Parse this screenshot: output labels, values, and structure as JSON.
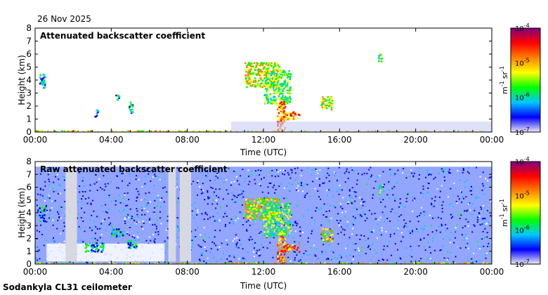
{
  "header": {
    "date": "26 Nov 2025"
  },
  "footer": {
    "site": "Sodankyla CL31 ceilometer"
  },
  "colors": {
    "frame": "#000000",
    "background": "#ffffff",
    "colorbar_stops": [
      "#ece8f4",
      "#0000ff",
      "#00c8ff",
      "#00ff00",
      "#ffff00",
      "#ff8000",
      "#ff0000",
      "#800080"
    ]
  },
  "chart_data": [
    {
      "type": "heatmap",
      "title": "Attenuated backscatter coefficient",
      "xlabel": "Time (UTC)",
      "ylabel": "Height (km)",
      "x_ticks": [
        "00:00",
        "04:00",
        "08:00",
        "12:00",
        "16:00",
        "20:00",
        "00:00"
      ],
      "x_range_hours": [
        0,
        24
      ],
      "y_ticks": [
        "0",
        "1",
        "2",
        "3",
        "4",
        "5",
        "6",
        "7",
        "8"
      ],
      "ylim": [
        0,
        8
      ],
      "colorbar": {
        "scale": "log",
        "range": [
          1e-07,
          0.0001
        ],
        "ticks": [
          "10",
          "10",
          "10",
          "10"
        ],
        "tick_exponents": [
          "-7",
          "-6",
          "-5",
          "-4"
        ],
        "unit_base": [
          "m",
          "sr"
        ],
        "unit_exponents": [
          "-1",
          "-1"
        ]
      },
      "features": [
        {
          "t0": 0.0,
          "t1": 24.0,
          "h0": 0.0,
          "h1": 0.15,
          "level": 5
        },
        {
          "t0": 0.2,
          "t1": 0.5,
          "h0": 3.4,
          "h1": 4.5,
          "level": 3
        },
        {
          "t0": 3.1,
          "t1": 3.3,
          "h0": 1.2,
          "h1": 1.9,
          "level": 2
        },
        {
          "t0": 4.2,
          "t1": 4.4,
          "h0": 2.5,
          "h1": 3.0,
          "level": 3
        },
        {
          "t0": 4.9,
          "t1": 5.1,
          "h0": 1.5,
          "h1": 2.4,
          "level": 3
        },
        {
          "t0": 11.0,
          "t1": 12.8,
          "h0": 3.5,
          "h1": 5.4,
          "level": 5
        },
        {
          "t0": 12.0,
          "t1": 13.4,
          "h0": 2.2,
          "h1": 4.8,
          "level": 4
        },
        {
          "t0": 12.7,
          "t1": 13.1,
          "h0": 0.0,
          "h1": 2.5,
          "level": 6
        },
        {
          "t0": 13.0,
          "t1": 13.9,
          "h0": 1.0,
          "h1": 1.6,
          "level": 6
        },
        {
          "t0": 15.0,
          "t1": 15.6,
          "h0": 1.8,
          "h1": 2.8,
          "level": 5
        },
        {
          "t0": 18.0,
          "t1": 18.2,
          "h0": 5.5,
          "h1": 6.2,
          "level": 4
        },
        {
          "t0": 10.3,
          "t1": 24.0,
          "h0": 0.0,
          "h1": 0.8,
          "level": 1
        }
      ]
    },
    {
      "type": "heatmap",
      "title": "Raw attenuated backscatter coefficient",
      "xlabel": "Time (UTC)",
      "ylabel": "Height (km)",
      "x_ticks": [
        "00:00",
        "04:00",
        "08:00",
        "12:00",
        "16:00",
        "20:00",
        "00:00"
      ],
      "x_range_hours": [
        0,
        24
      ],
      "y_ticks": [
        "0",
        "1",
        "2",
        "3",
        "4",
        "5",
        "6",
        "7",
        "8"
      ],
      "ylim": [
        0,
        8
      ],
      "colorbar": {
        "scale": "log",
        "range": [
          1e-07,
          0.0001
        ],
        "ticks": [
          "10",
          "10",
          "10",
          "10"
        ],
        "tick_exponents": [
          "-7",
          "-6",
          "-5",
          "-4"
        ],
        "unit_base": [
          "m",
          "sr"
        ],
        "unit_exponents": [
          "-1",
          "-1"
        ]
      },
      "noise_ceiling_km": 7.6,
      "gap_columns_hours": [
        [
          1.6,
          2.2
        ],
        [
          7.0,
          7.4
        ],
        [
          7.6,
          8.2
        ]
      ],
      "features": [
        {
          "t0": 0.2,
          "t1": 0.5,
          "h0": 3.4,
          "h1": 4.5,
          "level": 3
        },
        {
          "t0": 2.6,
          "t1": 3.6,
          "h0": 1.0,
          "h1": 1.7,
          "level": 3
        },
        {
          "t0": 4.0,
          "t1": 4.6,
          "h0": 2.2,
          "h1": 2.8,
          "level": 3
        },
        {
          "t0": 4.8,
          "t1": 5.3,
          "h0": 1.3,
          "h1": 2.0,
          "level": 3
        },
        {
          "t0": 11.0,
          "t1": 12.8,
          "h0": 3.5,
          "h1": 5.2,
          "level": 5
        },
        {
          "t0": 12.0,
          "t1": 13.4,
          "h0": 2.2,
          "h1": 4.8,
          "level": 4
        },
        {
          "t0": 12.7,
          "t1": 13.1,
          "h0": 0.0,
          "h1": 2.5,
          "level": 6
        },
        {
          "t0": 13.0,
          "t1": 13.9,
          "h0": 1.0,
          "h1": 1.6,
          "level": 6
        },
        {
          "t0": 15.0,
          "t1": 15.6,
          "h0": 1.8,
          "h1": 2.8,
          "level": 5
        },
        {
          "t0": 18.0,
          "t1": 18.2,
          "h0": 5.5,
          "h1": 6.2,
          "level": 4
        },
        {
          "t0": 0.0,
          "t1": 24.0,
          "h0": 0.0,
          "h1": 0.15,
          "level": 5
        }
      ]
    }
  ]
}
